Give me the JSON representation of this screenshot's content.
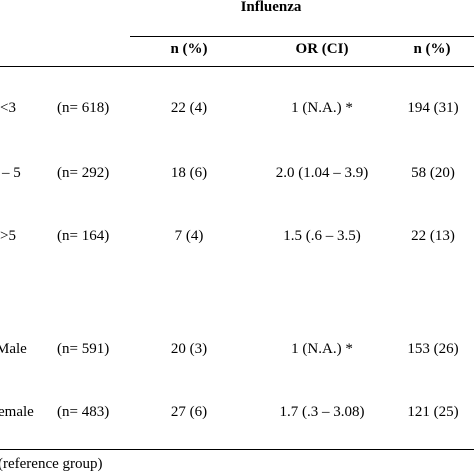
{
  "header": {
    "group_title": "Influenza",
    "col1": "n (%)",
    "col2": "OR (CI)",
    "col3": "n (%)"
  },
  "rows": [
    {
      "label": "<3",
      "n": "(n= 618)",
      "c1": "22 (4)",
      "c2": "1 (N.A.) *",
      "c3": "194 (31)"
    },
    {
      "label": "– 5",
      "n": "(n= 292)",
      "c1": "18 (6)",
      "c2": "2.0 (1.04 – 3.9)",
      "c3": "58 (20)"
    },
    {
      "label": ">5",
      "n": "(n= 164)",
      "c1": "7 (4)",
      "c2": "1.5 (.6 – 3.5)",
      "c3": "22 (13)"
    },
    {
      "label": "Male",
      "n": "(n= 591)",
      "c1": "20 (3)",
      "c2": "1 (N.A.) *",
      "c3": "153 (26)"
    },
    {
      "label": "emale",
      "n": "(n= 483)",
      "c1": "27 (6)",
      "c2": "1.7 (.3 – 3.08)",
      "c3": "121 (25)"
    }
  ],
  "footnote": "(reference group)"
}
